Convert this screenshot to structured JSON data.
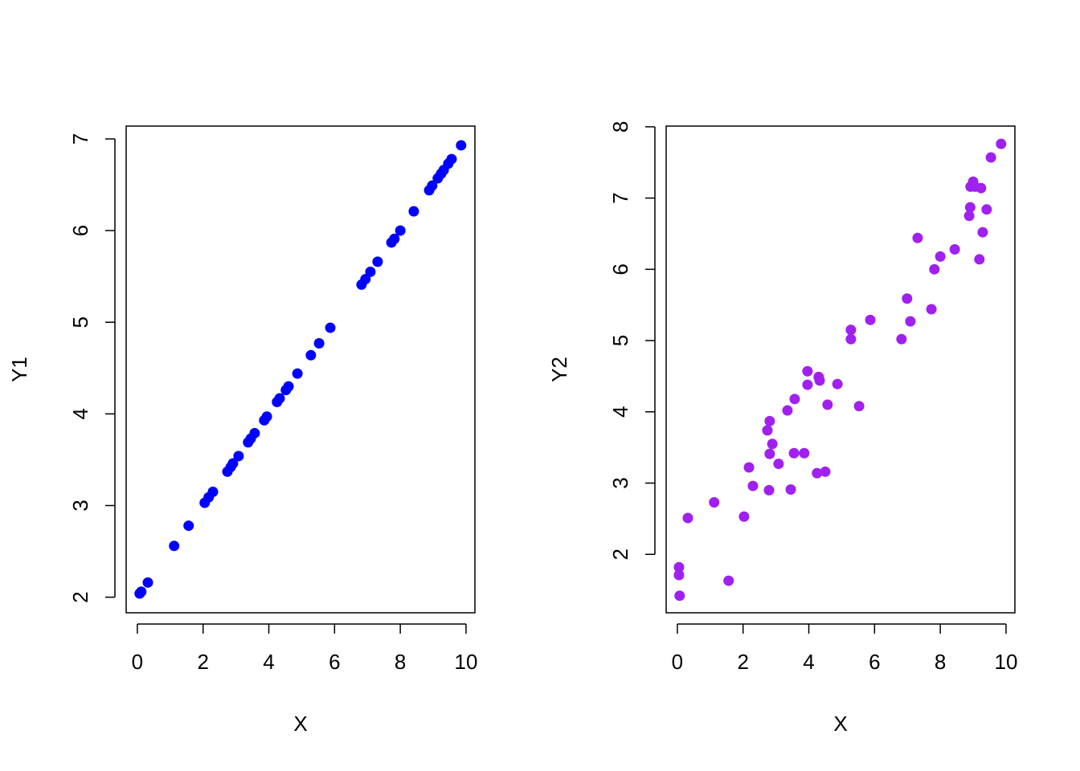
{
  "chart_data": [
    {
      "type": "scatter",
      "x_label": "X",
      "y_label": "Y1",
      "color": "#0000ff",
      "x": [
        0.07,
        0.12,
        0.32,
        1.12,
        1.56,
        2.05,
        2.17,
        2.3,
        2.74,
        2.84,
        2.91,
        3.08,
        3.37,
        3.45,
        3.57,
        3.86,
        3.94,
        4.25,
        4.33,
        4.52,
        4.6,
        4.87,
        5.28,
        5.53,
        5.87,
        6.82,
        6.94,
        7.09,
        7.31,
        7.73,
        7.82,
        8.0,
        8.41,
        8.88,
        8.97,
        9.14,
        9.24,
        9.32,
        9.46,
        9.56,
        9.85
      ],
      "values": [
        2.04,
        2.06,
        2.16,
        2.56,
        2.78,
        3.03,
        3.09,
        3.15,
        3.37,
        3.42,
        3.46,
        3.54,
        3.69,
        3.73,
        3.79,
        3.93,
        3.97,
        4.13,
        4.17,
        4.26,
        4.3,
        4.44,
        4.64,
        4.77,
        4.94,
        5.41,
        5.47,
        5.55,
        5.66,
        5.87,
        5.91,
        6.0,
        6.21,
        6.44,
        6.49,
        6.57,
        6.62,
        6.66,
        6.73,
        6.78,
        6.93
      ],
      "xlim": [
        -0.34,
        10.27
      ],
      "ylim": [
        1.83,
        7.14
      ],
      "xticks": [
        0,
        2,
        4,
        6,
        8,
        10
      ],
      "yticks": [
        2,
        3,
        4,
        5,
        6,
        7
      ]
    },
    {
      "type": "scatter",
      "x_label": "X",
      "y_label": "Y2",
      "color": "#a020f0",
      "x": [
        0.05,
        0.05,
        0.07,
        0.32,
        1.12,
        1.56,
        2.03,
        2.18,
        2.3,
        2.74,
        2.79,
        2.81,
        2.81,
        2.89,
        3.08,
        3.35,
        3.45,
        3.55,
        3.57,
        3.86,
        3.96,
        3.96,
        4.25,
        4.3,
        4.33,
        4.5,
        4.57,
        4.87,
        5.28,
        5.28,
        5.53,
        5.87,
        6.82,
        6.99,
        7.09,
        7.31,
        7.73,
        7.82,
        8.0,
        8.44,
        8.88,
        8.91,
        8.92,
        9.0,
        9.05,
        9.24,
        9.19,
        9.29,
        9.41,
        9.54,
        9.85
      ],
      "values": [
        1.82,
        1.71,
        1.42,
        2.51,
        2.73,
        1.63,
        2.53,
        3.22,
        2.96,
        3.74,
        2.9,
        3.41,
        3.87,
        3.55,
        3.27,
        4.02,
        2.91,
        3.42,
        4.18,
        3.42,
        4.38,
        4.57,
        3.14,
        4.49,
        4.44,
        3.16,
        4.1,
        4.39,
        5.15,
        5.02,
        4.08,
        5.29,
        5.02,
        5.59,
        5.27,
        6.44,
        5.44,
        6.0,
        6.18,
        6.28,
        6.75,
        6.87,
        7.16,
        7.23,
        7.16,
        7.14,
        6.14,
        6.52,
        6.84,
        7.57,
        7.76
      ],
      "xlim": [
        -0.34,
        10.27
      ],
      "ylim": [
        1.18,
        8.01
      ],
      "xticks": [
        0,
        2,
        4,
        6,
        8,
        10
      ],
      "yticks": [
        2,
        3,
        4,
        5,
        6,
        7,
        8
      ]
    }
  ]
}
